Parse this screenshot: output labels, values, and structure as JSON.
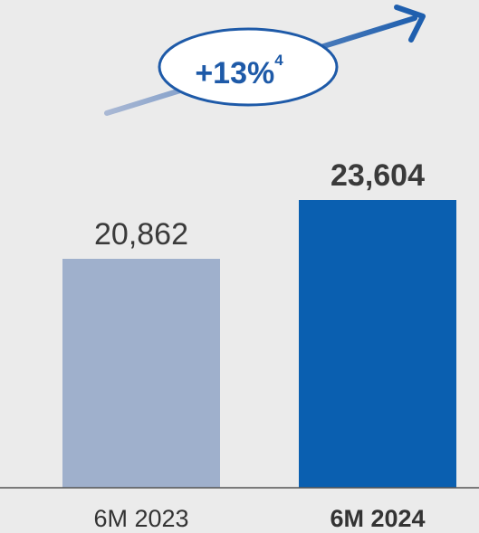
{
  "chart_data": {
    "type": "bar",
    "categories": [
      "6M 2023",
      "6M 2024"
    ],
    "values": [
      20862,
      23604
    ],
    "value_labels": [
      "20,862",
      "23,604"
    ],
    "colors": [
      "#9fb0cc",
      "#0a5fb0"
    ],
    "emphasis": [
      false,
      true
    ],
    "ylim": [
      0,
      25000
    ],
    "grid": false,
    "annotation": {
      "text": "+13%",
      "superscript": "4",
      "arrow": "up-right",
      "color": "#1e5aa8"
    }
  }
}
